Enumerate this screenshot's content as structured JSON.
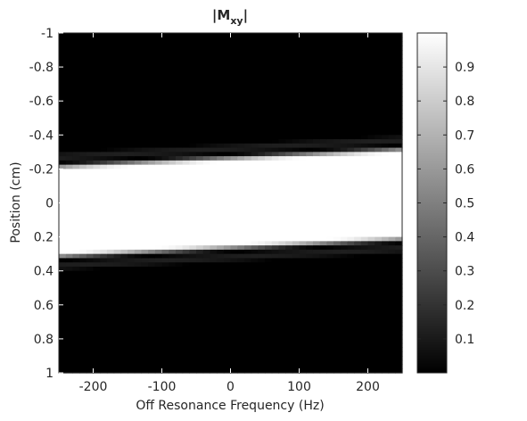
{
  "chart_data": {
    "type": "heatmap",
    "title": {
      "main": "|M",
      "subscript": "xy",
      "close": "|"
    },
    "xlabel": "Off Resonance Frequency (Hz)",
    "ylabel": "Position (cm)",
    "xlim": [
      -250,
      250
    ],
    "ylim": [
      -1,
      1
    ],
    "y_direction": "reversed",
    "x_ticks": [
      -200,
      -100,
      0,
      100,
      200
    ],
    "x_tick_labels": [
      "-200",
      "-100",
      "0",
      "100",
      "200"
    ],
    "y_ticks": [
      -1,
      -0.8,
      -0.6,
      -0.4,
      -0.2,
      0,
      0.2,
      0.4,
      0.6,
      0.8,
      1
    ],
    "y_tick_labels": [
      "-1",
      "-0.8",
      "-0.6",
      "-0.4",
      "-0.2",
      "0",
      "0.2",
      "0.4",
      "0.6",
      "0.8",
      "1"
    ],
    "colormap": "gray",
    "grid": false,
    "colorbar": {
      "placement": "right",
      "range": [
        0,
        1
      ],
      "ticks": [
        0.1,
        0.2,
        0.3,
        0.4,
        0.5,
        0.6,
        0.7,
        0.8,
        0.9
      ],
      "tick_labels": [
        "0.1",
        "0.2",
        "0.3",
        "0.4",
        "0.5",
        "0.6",
        "0.7",
        "0.8",
        "0.9"
      ]
    },
    "slice_profile": {
      "description_values": "Magnitude |Mxy| is near 1 inside the excited slab and near 0 outside; slab center shifts linearly with off-resonance frequency.",
      "center_at_x_min": 0.05,
      "center_at_x_max": -0.05,
      "half_width": 0.24,
      "transition_width": 0.05,
      "sidelobe_level": 0.12,
      "grid_nx": 50,
      "grid_ny": 80
    }
  }
}
